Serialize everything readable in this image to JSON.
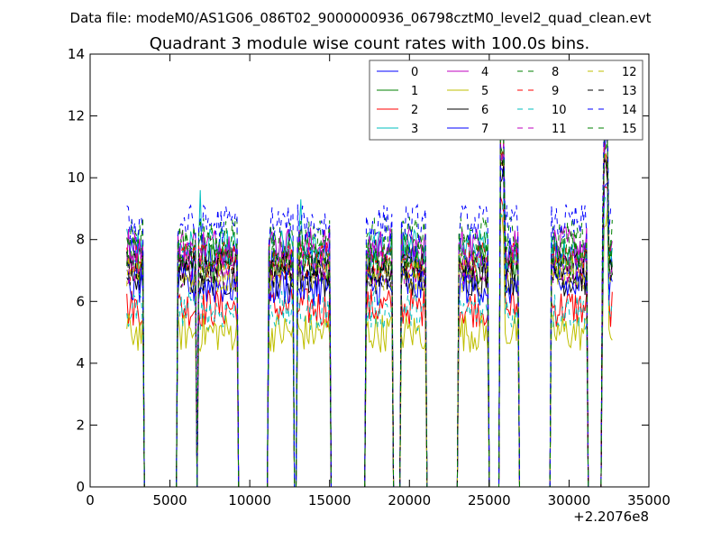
{
  "header": "Data file: modeM0/AS1G06_086T02_9000000936_06798cztM0_level2_quad_clean.evt",
  "chart_data": {
    "type": "line",
    "title": "Quadrant 3 module wise count rates with 100.0s bins.",
    "xlabel": "",
    "ylabel": "",
    "x_offset_label": "+2.2076e8",
    "xlim": [
      0,
      35000
    ],
    "ylim": [
      0,
      14
    ],
    "xticks": [
      0,
      5000,
      10000,
      15000,
      20000,
      25000,
      30000,
      35000
    ],
    "yticks": [
      0,
      2,
      4,
      6,
      8,
      10,
      12,
      14
    ],
    "grid": false,
    "legend_position": "top-right",
    "legend_columns": 4,
    "segments": [
      [
        2300,
        3300
      ],
      [
        5500,
        6600
      ],
      [
        6800,
        9200
      ],
      [
        11200,
        12700
      ],
      [
        13000,
        15000
      ],
      [
        17300,
        18900
      ],
      [
        19500,
        21000
      ],
      [
        23100,
        24900
      ],
      [
        25700,
        26800
      ],
      [
        28900,
        31100
      ],
      [
        32100,
        32700
      ]
    ],
    "baseline_range": [
      2300,
      32700
    ],
    "series": [
      {
        "name": "0",
        "color": "#0000ff",
        "dash": "solid",
        "level": 7.4
      },
      {
        "name": "1",
        "color": "#008000",
        "dash": "solid",
        "level": 7.2
      },
      {
        "name": "2",
        "color": "#ff0000",
        "dash": "solid",
        "level": 5.8
      },
      {
        "name": "3",
        "color": "#00bfbf",
        "dash": "solid",
        "level": 7.7
      },
      {
        "name": "4",
        "color": "#bf00bf",
        "dash": "solid",
        "level": 7.8
      },
      {
        "name": "5",
        "color": "#bfbf00",
        "dash": "solid",
        "level": 5.0
      },
      {
        "name": "6",
        "color": "#000000",
        "dash": "solid",
        "level": 6.8
      },
      {
        "name": "7",
        "color": "#0000ff",
        "dash": "solid",
        "level": 6.5
      },
      {
        "name": "8",
        "color": "#008000",
        "dash": "dashed",
        "level": 8.1
      },
      {
        "name": "9",
        "color": "#ff0000",
        "dash": "dashed",
        "level": 7.3
      },
      {
        "name": "10",
        "color": "#00bfbf",
        "dash": "dashed",
        "level": 5.7
      },
      {
        "name": "11",
        "color": "#bf00bf",
        "dash": "dashed",
        "level": 7.1
      },
      {
        "name": "12",
        "color": "#bfbf00",
        "dash": "dashed",
        "level": 6.9
      },
      {
        "name": "13",
        "color": "#000000",
        "dash": "dashed",
        "level": 7.0
      },
      {
        "name": "14",
        "color": "#0000ff",
        "dash": "dashed",
        "level": 8.5
      },
      {
        "name": "15",
        "color": "#008000",
        "dash": "dashed",
        "level": 7.6
      }
    ]
  }
}
